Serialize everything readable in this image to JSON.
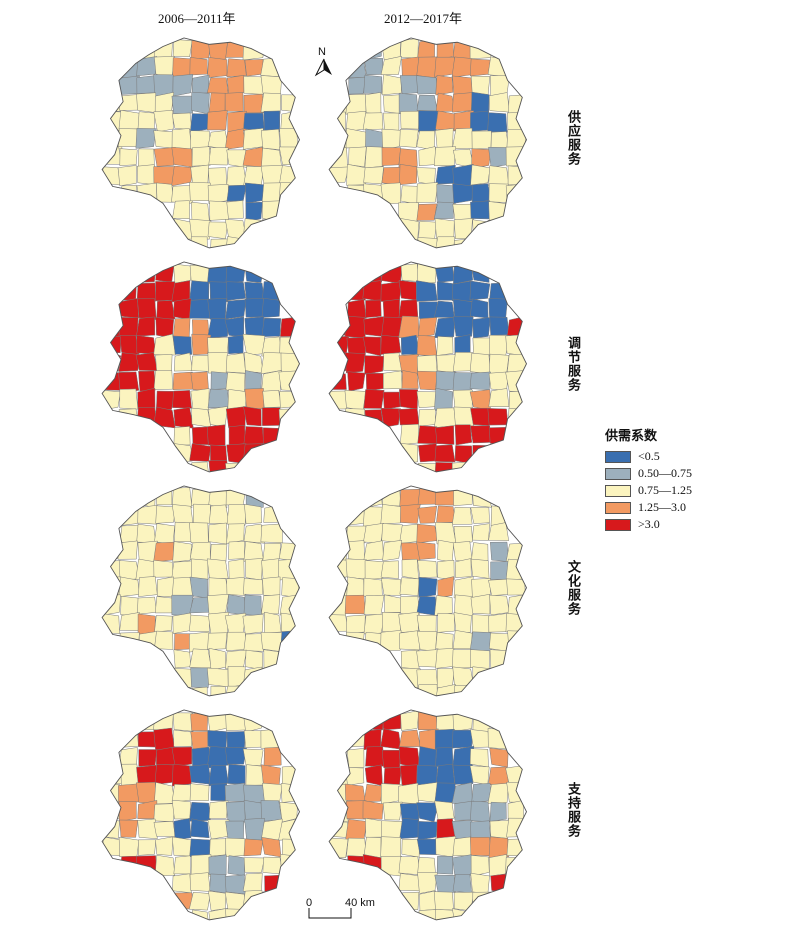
{
  "columns": [
    "2006—2011年",
    "2012—2017年"
  ],
  "rows": [
    "供应服务",
    "调节服务",
    "文化服务",
    "支持服务"
  ],
  "north_label": "N",
  "legend": {
    "title": "供需系数",
    "items": [
      {
        "label": "<0.5",
        "color": "#3a6fb0"
      },
      {
        "label": "0.50—0.75",
        "color": "#9db0bd"
      },
      {
        "label": "0.75—1.25",
        "color": "#fbf4bf"
      },
      {
        "label": "1.25—3.0",
        "color": "#f29a62"
      },
      {
        "label": ">3.0",
        "color": "#d7191c"
      }
    ]
  },
  "scale_bar": {
    "start": "0",
    "end": "40 km"
  },
  "colors": {
    "boundary": "#7a7a7a",
    "background": "#ffffff"
  }
}
